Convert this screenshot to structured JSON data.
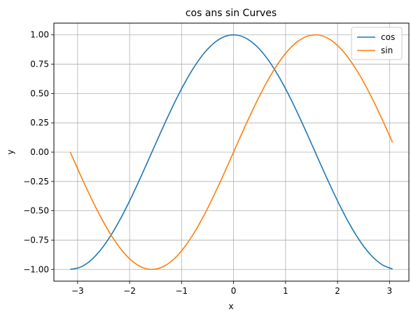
{
  "chart_data": {
    "type": "line",
    "title": "cos ans sin Curves",
    "xlabel": "x",
    "ylabel": "y",
    "xlim": [
      -3.4555,
      3.3726
    ],
    "ylim": [
      -1.1,
      1.1
    ],
    "grid": true,
    "legend_position": "top-right",
    "xticks": [
      -3,
      -2,
      -1,
      0,
      1,
      2,
      3
    ],
    "xtick_labels": [
      "−3",
      "−2",
      "−1",
      "0",
      "1",
      "2",
      "3"
    ],
    "yticks": [
      -1.0,
      -0.75,
      -0.5,
      -0.25,
      0.0,
      0.25,
      0.5,
      0.75,
      1.0
    ],
    "ytick_labels": [
      "−1.00",
      "−0.75",
      "−0.50",
      "−0.25",
      "0.00",
      "0.25",
      "0.50",
      "0.75",
      "1.00"
    ],
    "x": [
      -3.1416,
      -2.9416,
      -2.7416,
      -2.5416,
      -2.3416,
      -2.1416,
      -1.9416,
      -1.7416,
      -1.5416,
      -1.3416,
      -1.1416,
      -0.9416,
      -0.7416,
      -0.5416,
      -0.3416,
      -0.1416,
      0.0584,
      0.2584,
      0.4584,
      0.6584,
      0.8584,
      1.0584,
      1.2584,
      1.4584,
      1.6584,
      1.8584,
      2.0584,
      2.2584,
      2.4584,
      2.6584,
      2.8584,
      3.0584
    ],
    "series": [
      {
        "name": "cos",
        "color": "#1f77b4",
        "values": [
          -1.0,
          -0.9801,
          -0.9211,
          -0.8253,
          -0.6967,
          -0.5403,
          -0.3624,
          -0.17,
          0.0292,
          0.2272,
          0.4161,
          0.5885,
          0.7374,
          0.8569,
          0.9422,
          0.99,
          0.9983,
          0.9668,
          0.8968,
          0.791,
          0.6536,
          0.4902,
          0.3073,
          0.1122,
          -0.0875,
          -0.2837,
          -0.4685,
          -0.6347,
          -0.7756,
          -0.8855,
          -0.9602,
          -0.9965
        ]
      },
      {
        "name": "sin",
        "color": "#ff7f0e",
        "values": [
          0.0,
          -0.1987,
          -0.3894,
          -0.5646,
          -0.7174,
          -0.8415,
          -0.932,
          -0.9854,
          -0.9996,
          -0.9738,
          -0.9093,
          -0.8085,
          -0.6755,
          -0.5155,
          -0.335,
          -0.1411,
          0.0584,
          0.2555,
          0.4425,
          0.6119,
          0.757,
          0.8719,
          0.9516,
          0.9937,
          0.9962,
          0.9589,
          0.8835,
          0.7728,
          0.6313,
          0.4646,
          0.2794,
          0.0831
        ]
      }
    ]
  }
}
